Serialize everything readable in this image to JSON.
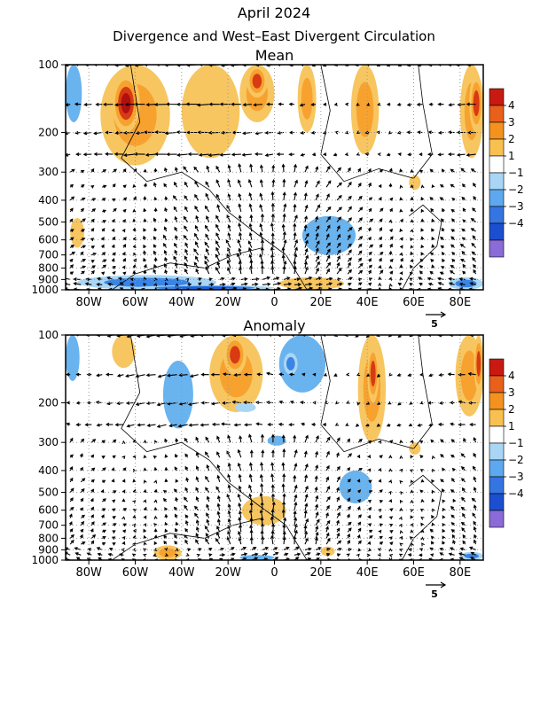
{
  "title_line1": "April 2024",
  "title_line2": "Divergence and West–East Divergent Circulation",
  "chart_data": [
    {
      "type": "heatmap",
      "panel_title": "Mean",
      "x_ticks": [
        "80W",
        "60W",
        "40W",
        "20W",
        "0",
        "20E",
        "40E",
        "60E",
        "80E"
      ],
      "x_tick_values": [
        -80,
        -60,
        -40,
        -20,
        0,
        20,
        40,
        60,
        80
      ],
      "xlim": [
        -90,
        90
      ],
      "y_ticks": [
        "100",
        "200",
        "300",
        "400",
        "500",
        "600",
        "700",
        "800",
        "900",
        "1000"
      ],
      "y_tick_values": [
        100,
        200,
        300,
        400,
        500,
        600,
        700,
        800,
        900,
        1000
      ],
      "ylim": [
        1000,
        100
      ],
      "y_scale": "log (pressure, hPa)",
      "colorbar_levels": [
        4,
        3,
        2,
        1,
        -1,
        -2,
        -3,
        -4
      ],
      "colorbar_labels": [
        "4",
        "3",
        "2",
        "1",
        "−1",
        "−2",
        "−3",
        "−4"
      ],
      "vector_reference": "5",
      "grid": true,
      "divergence_regions": [
        {
          "lon": [
            -75,
            -45
          ],
          "p": [
            100,
            280
          ],
          "value": 2.5
        },
        {
          "lon": [
            -70,
            -58
          ],
          "p": [
            110,
            200
          ],
          "value": 4
        },
        {
          "lon": [
            -40,
            -15
          ],
          "p": [
            100,
            260
          ],
          "value": 1.5
        },
        {
          "lon": [
            -15,
            0
          ],
          "p": [
            100,
            180
          ],
          "value": 2
        },
        {
          "lon": [
            -12,
            -3
          ],
          "p": [
            100,
            140
          ],
          "value": 3
        },
        {
          "lon": [
            10,
            18
          ],
          "p": [
            100,
            200
          ],
          "value": 2
        },
        {
          "lon": [
            33,
            45
          ],
          "p": [
            100,
            250
          ],
          "value": 2
        },
        {
          "lon": [
            80,
            90
          ],
          "p": [
            100,
            260
          ],
          "value": 2.5
        },
        {
          "lon": [
            84,
            90
          ],
          "p": [
            110,
            200
          ],
          "value": 3.5
        },
        {
          "lon": [
            -88,
            -82
          ],
          "p": [
            480,
            650
          ],
          "value": 1.5
        },
        {
          "lon": [
            2,
            30
          ],
          "p": [
            880,
            1000
          ],
          "value": 1.5
        },
        {
          "lon": [
            58,
            63
          ],
          "p": [
            310,
            360
          ],
          "value": 1.5
        }
      ],
      "convergence_regions": [
        {
          "lon": [
            -90,
            -83
          ],
          "p": [
            100,
            180
          ],
          "value": -1.5
        },
        {
          "lon": [
            12,
            35
          ],
          "p": [
            470,
            700
          ],
          "value": -1.5
        },
        {
          "lon": [
            -85,
            -25
          ],
          "p": [
            860,
            1000
          ],
          "value": -2
        },
        {
          "lon": [
            -60,
            0
          ],
          "p": [
            960,
            1000
          ],
          "value": -3
        },
        {
          "lon": [
            75,
            90
          ],
          "p": [
            880,
            1000
          ],
          "value": -2
        }
      ]
    },
    {
      "type": "heatmap",
      "panel_title": "Anomaly",
      "x_ticks": [
        "80W",
        "60W",
        "40W",
        "20W",
        "0",
        "20E",
        "40E",
        "60E",
        "80E"
      ],
      "x_tick_values": [
        -80,
        -60,
        -40,
        -20,
        0,
        20,
        40,
        60,
        80
      ],
      "xlim": [
        -90,
        90
      ],
      "y_ticks": [
        "100",
        "200",
        "300",
        "400",
        "500",
        "600",
        "700",
        "800",
        "900",
        "1000"
      ],
      "y_tick_values": [
        100,
        200,
        300,
        400,
        500,
        600,
        700,
        800,
        900,
        1000
      ],
      "ylim": [
        1000,
        100
      ],
      "y_scale": "log (pressure, hPa)",
      "colorbar_levels": [
        4,
        3,
        2,
        1,
        -1,
        -2,
        -3,
        -4
      ],
      "colorbar_labels": [
        "4",
        "3",
        "2",
        "1",
        "−1",
        "−2",
        "−3",
        "−4"
      ],
      "vector_reference": "5",
      "grid": true,
      "divergence_regions": [
        {
          "lon": [
            -70,
            -60
          ],
          "p": [
            100,
            140
          ],
          "value": 1.5
        },
        {
          "lon": [
            -28,
            -5
          ],
          "p": [
            100,
            220
          ],
          "value": 2
        },
        {
          "lon": [
            -22,
            -12
          ],
          "p": [
            100,
            150
          ],
          "value": 3
        },
        {
          "lon": [
            36,
            48
          ],
          "p": [
            100,
            300
          ],
          "value": 2
        },
        {
          "lon": [
            40,
            45
          ],
          "p": [
            110,
            200
          ],
          "value": 3
        },
        {
          "lon": [
            78,
            90
          ],
          "p": [
            100,
            230
          ],
          "value": 2
        },
        {
          "lon": [
            86,
            90
          ],
          "p": [
            100,
            180
          ],
          "value": 3.5
        },
        {
          "lon": [
            -14,
            5
          ],
          "p": [
            520,
            700
          ],
          "value": 1.5
        },
        {
          "lon": [
            -52,
            -40
          ],
          "p": [
            860,
            1000
          ],
          "value": 2
        },
        {
          "lon": [
            20,
            26
          ],
          "p": [
            870,
            960
          ],
          "value": 1.5
        },
        {
          "lon": [
            58,
            63
          ],
          "p": [
            300,
            340
          ],
          "value": 1.5
        }
      ],
      "convergence_regions": [
        {
          "lon": [
            -90,
            -84
          ],
          "p": [
            100,
            160
          ],
          "value": -1.5
        },
        {
          "lon": [
            -48,
            -35
          ],
          "p": [
            130,
            260
          ],
          "value": -1.5
        },
        {
          "lon": [
            2,
            22
          ],
          "p": [
            100,
            180
          ],
          "value": -1.5
        },
        {
          "lon": [
            4,
            10
          ],
          "p": [
            120,
            150
          ],
          "value": -2
        },
        {
          "lon": [
            28,
            42
          ],
          "p": [
            400,
            560
          ],
          "value": -1.5
        },
        {
          "lon": [
            -3,
            5
          ],
          "p": [
            280,
            310
          ],
          "value": -1.5
        },
        {
          "lon": [
            -17,
            -8
          ],
          "p": [
            200,
            220
          ],
          "value": -1.2
        },
        {
          "lon": [
            -15,
            0
          ],
          "p": [
            950,
            1000
          ],
          "value": -1.5
        },
        {
          "lon": [
            80,
            90
          ],
          "p": [
            920,
            1000
          ],
          "value": -2
        }
      ]
    }
  ],
  "colors": {
    "pos": [
      "#ffffff",
      "#f7c660",
      "#f7a22f",
      "#f07b1c",
      "#d83a14",
      "#b01010"
    ],
    "neg": [
      "#ffffff",
      "#a9d6f5",
      "#69b3ef",
      "#3a84e6",
      "#1f5fd6",
      "#7a62d8"
    ],
    "colorbar": [
      "#c81a10",
      "#e8601c",
      "#f3921e",
      "#f7c050",
      "#ffffff",
      "#a9d6f5",
      "#5da8ee",
      "#3575e2",
      "#1c4fd0",
      "#8b6bd8"
    ]
  }
}
